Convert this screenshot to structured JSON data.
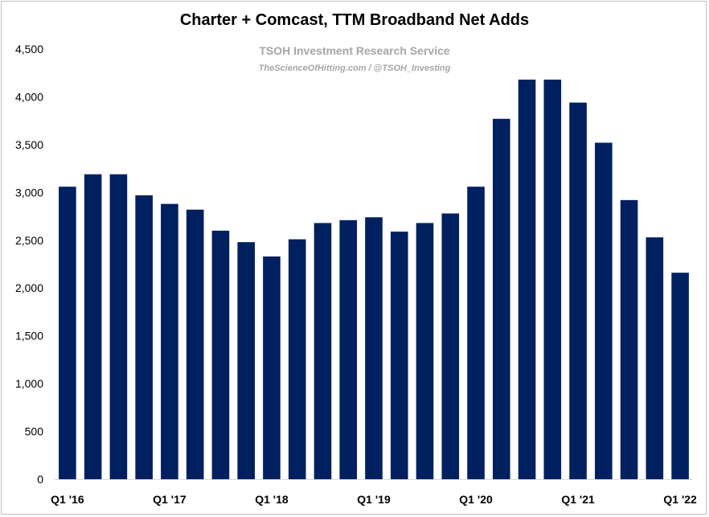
{
  "chart_data": {
    "type": "bar",
    "title": "Charter + Comcast, TTM Broadband Net Adds",
    "watermark": {
      "line1": "TSOH Investment Research Service",
      "line2": "TheScienceOfHitting.com / @TSOH_Investing"
    },
    "categories": [
      "Q1 '16",
      "Q2 '16",
      "Q3 '16",
      "Q4 '16",
      "Q1 '17",
      "Q2 '17",
      "Q3 '17",
      "Q4 '17",
      "Q1 '18",
      "Q2 '18",
      "Q3 '18",
      "Q4 '18",
      "Q1 '19",
      "Q2 '19",
      "Q3 '19",
      "Q4 '19",
      "Q1 '20",
      "Q2 '20",
      "Q3 '20",
      "Q4 '20",
      "Q1 '21",
      "Q2 '21",
      "Q3 '21",
      "Q4 '21",
      "Q1 '22"
    ],
    "x_tick_labels": [
      "Q1 '16",
      "",
      "",
      "",
      "Q1 '17",
      "",
      "",
      "",
      "Q1 '18",
      "",
      "",
      "",
      "Q1 '19",
      "",
      "",
      "",
      "Q1 '20",
      "",
      "",
      "",
      "Q1 '21",
      "",
      "",
      "",
      "Q1 '22"
    ],
    "values": [
      3060,
      3190,
      3190,
      2970,
      2880,
      2820,
      2600,
      2480,
      2330,
      2510,
      2680,
      2710,
      2740,
      2590,
      2680,
      2780,
      3060,
      3770,
      4180,
      4180,
      3940,
      3520,
      2920,
      2530,
      2160
    ],
    "ylim": [
      0,
      4500
    ],
    "y_ticks": [
      0,
      500,
      1000,
      1500,
      2000,
      2500,
      3000,
      3500,
      4000,
      4500
    ],
    "y_tick_labels": [
      "0",
      "500",
      "1,000",
      "1,500",
      "2,000",
      "2,500",
      "3,000",
      "3,500",
      "4,000",
      "4,500"
    ],
    "xlabel": "",
    "ylabel": "",
    "grid": false,
    "bar_color": "#002060"
  }
}
